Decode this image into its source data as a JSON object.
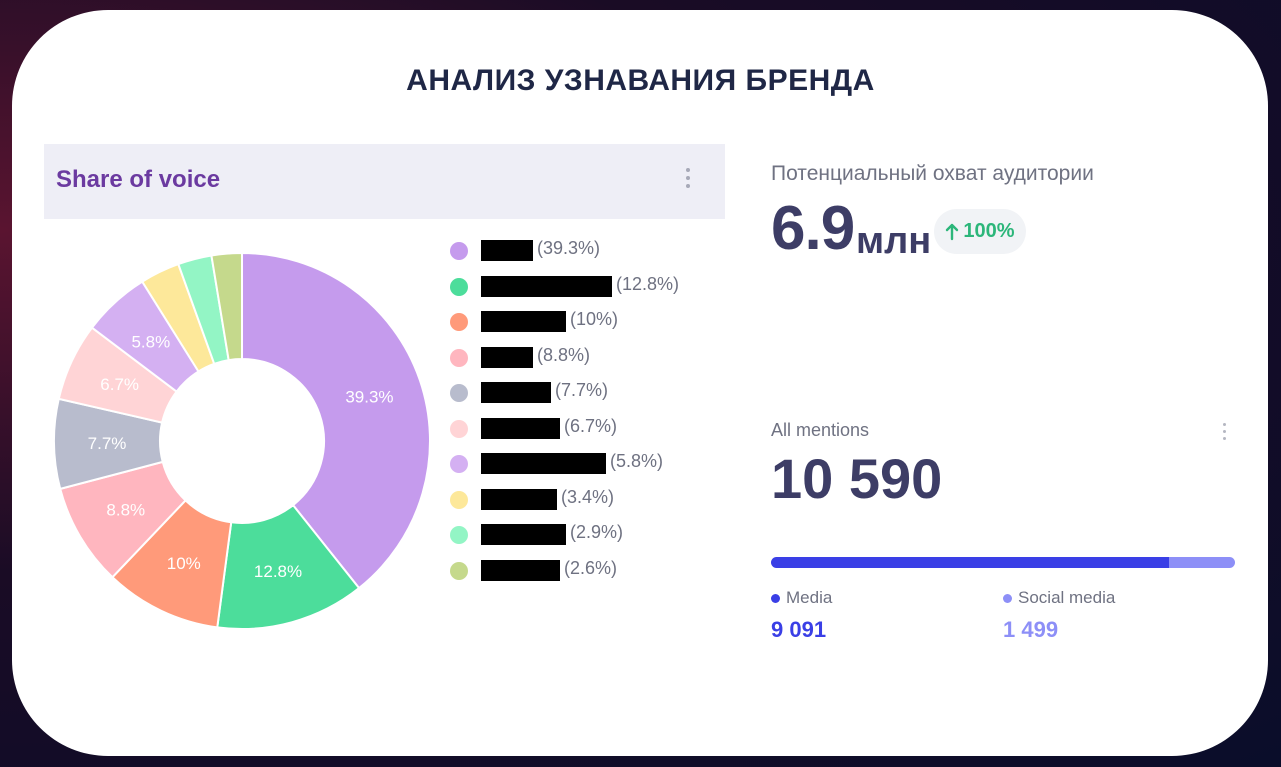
{
  "page": {
    "title": "АНАЛИЗ УЗНАВАНИЯ БРЕНДА"
  },
  "share_of_voice": {
    "title": "Share of voice"
  },
  "chart_data": {
    "type": "pie",
    "title": "Share of voice",
    "donut": true,
    "values": [
      39.3,
      12.8,
      10,
      8.8,
      7.7,
      6.7,
      5.8,
      3.4,
      2.9,
      2.6
    ],
    "slice_labels": [
      "39.3%",
      "12.8%",
      "10%",
      "8.8%",
      "7.7%",
      "6.7%",
      "5.8%",
      "",
      "",
      ""
    ],
    "legend_pcts": [
      "(39.3%)",
      "(12.8%)",
      "(10%)",
      "(8.8%)",
      "(7.7%)",
      "(6.7%)",
      "(5.8%)",
      "(3.4%)",
      "(2.9%)",
      "(2.6%)"
    ],
    "colors": [
      "#c59bed",
      "#4cdd9b",
      "#ff9a7a",
      "#ffb6bf",
      "#b8bccd",
      "#ffd4d6",
      "#d4b0f2",
      "#fde89a",
      "#93f5c5",
      "#c5d98c"
    ],
    "legend_names_redacted": true
  },
  "reach": {
    "label": "Потенциальный охват аудитории",
    "value": "6.9",
    "unit": "млн",
    "growth": "100%",
    "growth_icon": "arrow-up-icon"
  },
  "mentions": {
    "label": "All mentions",
    "total": "10 590",
    "media_label": "Media",
    "media_value": "9 091",
    "social_label": "Social media",
    "social_value": "1 499",
    "media_share": 0.8585,
    "media_color": "#3a3fe6",
    "social_color": "#8d8ff7"
  }
}
